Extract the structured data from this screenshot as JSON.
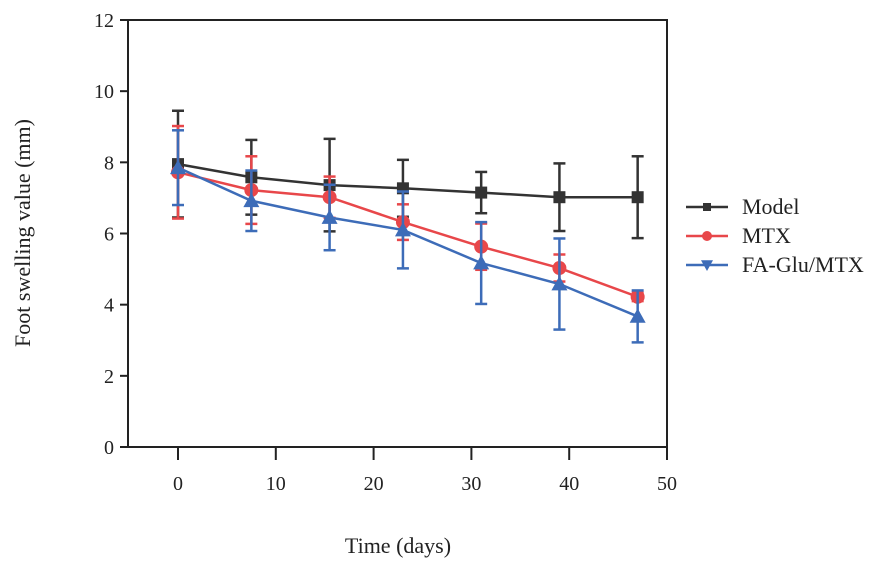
{
  "chart_data": {
    "type": "line",
    "title": "",
    "xlabel": "Time (days)",
    "ylabel": "Foot swelling value (mm)",
    "xlim": [
      -5,
      50
    ],
    "ylim": [
      0,
      12
    ],
    "xticks": [
      0,
      10,
      20,
      30,
      40,
      50
    ],
    "yticks": [
      0,
      2,
      4,
      6,
      8,
      10,
      12
    ],
    "grid": false,
    "legend_position": "right",
    "x": [
      0,
      7.5,
      15.5,
      23,
      31,
      39,
      47
    ],
    "series": [
      {
        "name": "Model",
        "color": "#333333",
        "marker": "square",
        "values": [
          7.95,
          7.58,
          7.36,
          7.27,
          7.15,
          7.02,
          7.02
        ],
        "error": [
          1.5,
          1.05,
          1.3,
          0.8,
          0.58,
          0.95,
          1.15
        ]
      },
      {
        "name": "MTX",
        "color": "#e8474a",
        "marker": "circle",
        "values": [
          7.72,
          7.22,
          7.02,
          6.32,
          5.63,
          5.03,
          4.22
        ],
        "error": [
          1.3,
          0.95,
          0.58,
          0.5,
          0.65,
          0.38,
          0.12
        ]
      },
      {
        "name": "FA-Glu/MTX",
        "color": "#3d6cb8",
        "marker": "triangle",
        "values": [
          7.85,
          6.92,
          6.45,
          6.1,
          5.17,
          4.58,
          3.67
        ],
        "error": [
          1.05,
          0.85,
          0.92,
          1.08,
          1.15,
          1.28,
          0.73
        ]
      }
    ]
  }
}
